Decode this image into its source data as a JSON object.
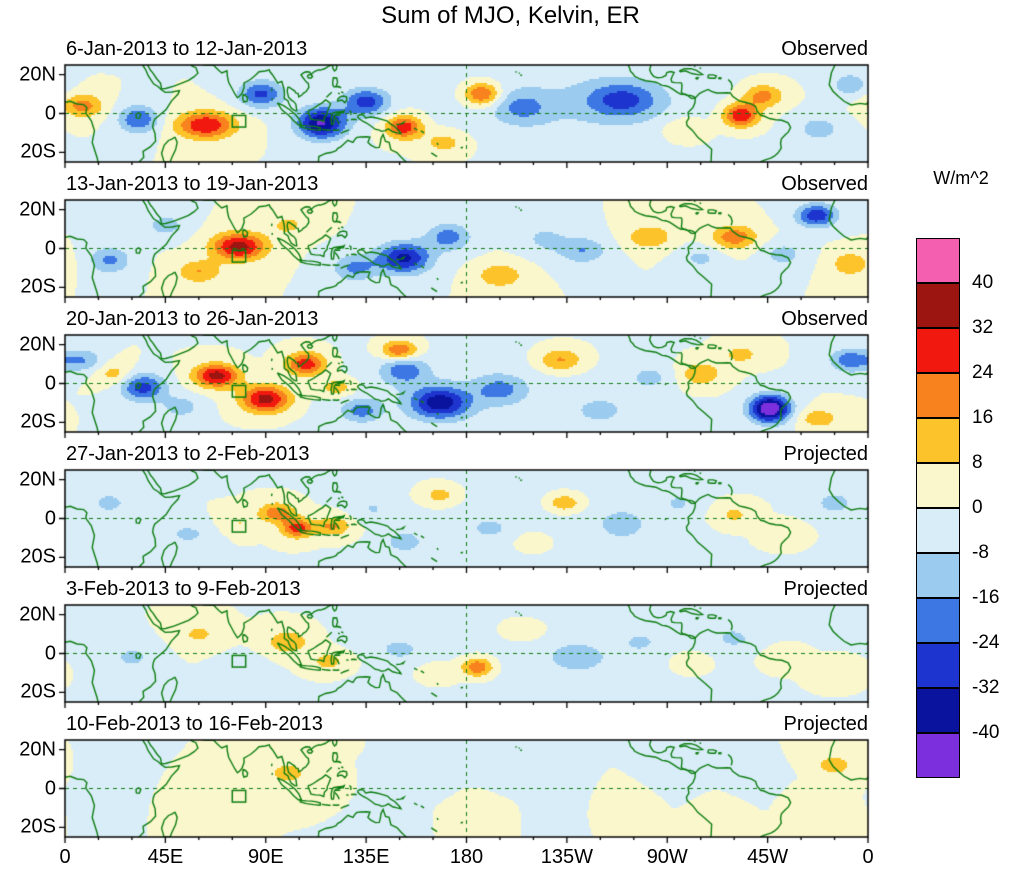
{
  "colors": {
    "coastline": "#0E7E12",
    "panel_border": "#000000",
    "background": "#FFFFFF"
  },
  "chart_data": {
    "type": "heatmap",
    "title": "Sum of MJO, Kelvin, ER",
    "units": "W/m^2",
    "map_extent": {
      "lon_min": 0,
      "lon_max": 360,
      "lat_min": -25,
      "lat_max": 25
    },
    "x_axis": {
      "ticks": [
        "0",
        "45E",
        "90E",
        "135E",
        "180",
        "135W",
        "90W",
        "45W",
        "0"
      ],
      "lon_values": [
        0,
        45,
        90,
        135,
        180,
        225,
        270,
        315,
        360
      ]
    },
    "y_axis": {
      "ticks": [
        "20N",
        "0",
        "20S"
      ],
      "lat_values": [
        20,
        0,
        -20
      ]
    },
    "colorbar": {
      "labels_top_to_bottom": [
        "40",
        "32",
        "24",
        "16",
        "8",
        "0",
        "-8",
        "-16",
        "-24",
        "-32",
        "-40"
      ],
      "levels": [
        -40,
        -32,
        -24,
        -16,
        -8,
        0,
        8,
        16,
        24,
        32,
        40
      ],
      "colors_low_to_high": [
        "#7C2FDC",
        "#0A139E",
        "#1D35CE",
        "#3D77E3",
        "#9BCBEF",
        "#D9EDF8",
        "#FBF7CD",
        "#FCC42A",
        "#F8821E",
        "#F0180F",
        "#9C1511",
        "#F55FB0"
      ]
    },
    "reference_box": {
      "lon_min": 75,
      "lon_max": 81,
      "lat_min": -7,
      "lat_max": -1
    },
    "panels": [
      {
        "label": "6-Jan-2013 to 12-Jan-2013",
        "mode": "Observed",
        "anomaly_features": [
          [
            8,
            4,
            20,
            9,
            6
          ],
          [
            33,
            -3,
            -24,
            9,
            7
          ],
          [
            63,
            -6,
            32,
            13,
            7
          ],
          [
            88,
            10,
            -26,
            10,
            7
          ],
          [
            115,
            -5,
            -41,
            11,
            8
          ],
          [
            135,
            6,
            -28,
            10,
            7
          ],
          [
            152,
            -7,
            30,
            8,
            6
          ],
          [
            170,
            -15,
            12,
            10,
            6
          ],
          [
            187,
            10,
            28,
            8,
            6
          ],
          [
            205,
            3,
            -14,
            12,
            8
          ],
          [
            230,
            5,
            -8,
            55,
            20
          ],
          [
            250,
            7,
            -22,
            16,
            9
          ],
          [
            278,
            -8,
            10,
            10,
            6
          ],
          [
            303,
            -1,
            32,
            8,
            6
          ],
          [
            313,
            9,
            20,
            9,
            6
          ],
          [
            338,
            -8,
            -12,
            10,
            7
          ],
          [
            352,
            15,
            -14,
            8,
            6
          ]
        ]
      },
      {
        "label": "13-Jan-2013 to 19-Jan-2013",
        "mode": "Observed",
        "anomaly_features": [
          [
            20,
            -6,
            -18,
            9,
            7
          ],
          [
            45,
            12,
            -12,
            9,
            6
          ],
          [
            60,
            -12,
            16,
            10,
            6
          ],
          [
            78,
            1,
            36,
            12,
            7
          ],
          [
            100,
            12,
            10,
            9,
            6
          ],
          [
            130,
            -10,
            -18,
            10,
            7
          ],
          [
            152,
            -5,
            -34,
            12,
            8
          ],
          [
            172,
            6,
            -20,
            10,
            7
          ],
          [
            195,
            -14,
            16,
            10,
            6
          ],
          [
            215,
            5,
            -10,
            10,
            7
          ],
          [
            232,
            -1,
            -16,
            11,
            7
          ],
          [
            262,
            6,
            16,
            10,
            6
          ],
          [
            285,
            -5,
            -10,
            9,
            6
          ],
          [
            300,
            6,
            22,
            10,
            6
          ],
          [
            322,
            -3,
            -12,
            9,
            6
          ],
          [
            337,
            17,
            -30,
            9,
            6
          ],
          [
            352,
            -8,
            16,
            8,
            6
          ]
        ]
      },
      {
        "label": "20-Jan-2013 to 26-Jan-2013",
        "mode": "Observed",
        "anomaly_features": [
          [
            8,
            12,
            -16,
            9,
            6
          ],
          [
            22,
            5,
            12,
            8,
            6
          ],
          [
            35,
            -2,
            -28,
            10,
            7
          ],
          [
            52,
            -12,
            -12,
            9,
            6
          ],
          [
            68,
            4,
            36,
            10,
            6
          ],
          [
            90,
            -8,
            36,
            11,
            7
          ],
          [
            108,
            10,
            30,
            9,
            6
          ],
          [
            122,
            -2,
            14,
            8,
            5
          ],
          [
            133,
            -14,
            -18,
            9,
            6
          ],
          [
            150,
            17,
            26,
            8,
            5
          ],
          [
            152,
            7,
            -20,
            10,
            7
          ],
          [
            168,
            -10,
            -34,
            13,
            8
          ],
          [
            180,
            -5,
            -5,
            60,
            20
          ],
          [
            195,
            -3,
            -16,
            11,
            7
          ],
          [
            222,
            12,
            18,
            10,
            6
          ],
          [
            240,
            -14,
            -12,
            10,
            6
          ],
          [
            262,
            3,
            -10,
            10,
            7
          ],
          [
            285,
            5,
            16,
            9,
            6
          ],
          [
            303,
            15,
            12,
            8,
            5
          ],
          [
            316,
            -13,
            -50,
            9,
            7
          ],
          [
            338,
            -18,
            14,
            9,
            5
          ],
          [
            352,
            12,
            -22,
            9,
            6
          ]
        ]
      },
      {
        "label": "27-Jan-2013 to 2-Feb-2013",
        "mode": "Projected",
        "anomaly_features": [
          [
            20,
            8,
            -10,
            10,
            7
          ],
          [
            55,
            -8,
            -10,
            10,
            6
          ],
          [
            78,
            -2,
            8,
            8,
            5
          ],
          [
            95,
            3,
            22,
            8,
            5
          ],
          [
            104,
            -5,
            28,
            7,
            5
          ],
          [
            120,
            -4,
            18,
            8,
            5
          ],
          [
            138,
            5,
            -8,
            9,
            6
          ],
          [
            152,
            -12,
            -12,
            9,
            6
          ],
          [
            168,
            12,
            12,
            8,
            5
          ],
          [
            190,
            -5,
            -8,
            10,
            6
          ],
          [
            210,
            -12,
            8,
            8,
            5
          ],
          [
            224,
            8,
            16,
            8,
            5
          ],
          [
            220,
            0,
            -3,
            60,
            22
          ],
          [
            250,
            -3,
            -12,
            10,
            7
          ],
          [
            275,
            8,
            -8,
            9,
            6
          ],
          [
            300,
            2,
            10,
            9,
            6
          ],
          [
            320,
            -8,
            8,
            8,
            5
          ],
          [
            345,
            8,
            -12,
            9,
            6
          ]
        ]
      },
      {
        "label": "3-Feb-2013 to 9-Feb-2013",
        "mode": "Projected",
        "anomaly_features": [
          [
            30,
            -2,
            -10,
            10,
            7
          ],
          [
            60,
            10,
            10,
            9,
            6
          ],
          [
            80,
            -8,
            -6,
            9,
            6
          ],
          [
            100,
            6,
            16,
            9,
            6
          ],
          [
            118,
            -4,
            12,
            8,
            5
          ],
          [
            135,
            8,
            -6,
            8,
            5
          ],
          [
            150,
            2,
            -10,
            10,
            6
          ],
          [
            168,
            -10,
            8,
            8,
            5
          ],
          [
            185,
            -7,
            24,
            7,
            5
          ],
          [
            205,
            12,
            10,
            9,
            5
          ],
          [
            220,
            0,
            -3,
            60,
            22
          ],
          [
            230,
            -2,
            -12,
            12,
            7
          ],
          [
            258,
            6,
            -8,
            9,
            6
          ],
          [
            280,
            -5,
            6,
            8,
            5
          ],
          [
            300,
            8,
            -10,
            9,
            6
          ],
          [
            322,
            -3,
            6,
            8,
            5
          ],
          [
            343,
            -10,
            8,
            8,
            5
          ]
        ]
      },
      {
        "label": "10-Feb-2013 to 16-Feb-2013",
        "mode": "Projected",
        "anomaly_features": [
          [
            25,
            10,
            -6,
            10,
            7
          ],
          [
            60,
            2,
            8,
            9,
            6
          ],
          [
            80,
            10,
            6,
            8,
            5
          ],
          [
            100,
            8,
            12,
            9,
            6
          ],
          [
            122,
            -2,
            6,
            8,
            5
          ],
          [
            140,
            -5,
            -8,
            10,
            6
          ],
          [
            165,
            5,
            -6,
            9,
            6
          ],
          [
            185,
            -8,
            6,
            8,
            5
          ],
          [
            200,
            6,
            -8,
            10,
            6
          ],
          [
            222,
            -3,
            -6,
            9,
            6
          ],
          [
            250,
            -6,
            8,
            9,
            5
          ],
          [
            275,
            5,
            -6,
            9,
            6
          ],
          [
            295,
            -10,
            6,
            8,
            5
          ],
          [
            310,
            2,
            -8,
            9,
            6
          ],
          [
            330,
            -5,
            6,
            8,
            5
          ],
          [
            345,
            12,
            14,
            8,
            5
          ]
        ]
      }
    ]
  }
}
